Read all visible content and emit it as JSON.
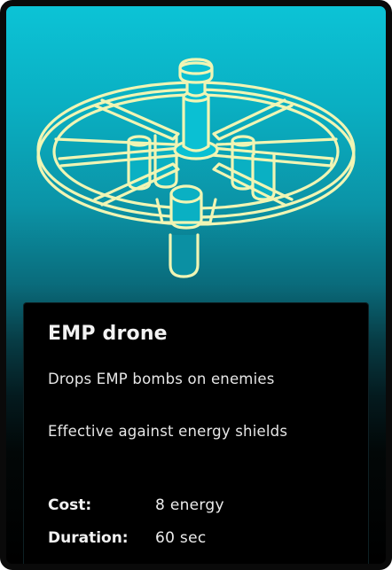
{
  "card": {
    "title": "EMP drone",
    "description_lines": [
      "Drops EMP bombs on enemies",
      "Effective against energy shields"
    ],
    "stats": [
      {
        "label": "Cost:",
        "value": "8 energy"
      },
      {
        "label": "Duration:",
        "value": "60 sec"
      }
    ]
  },
  "illustration": {
    "icon": "emp-drone-line-art",
    "stroke_color": "#f0f5b4",
    "background_color": "#0cc3d6"
  }
}
